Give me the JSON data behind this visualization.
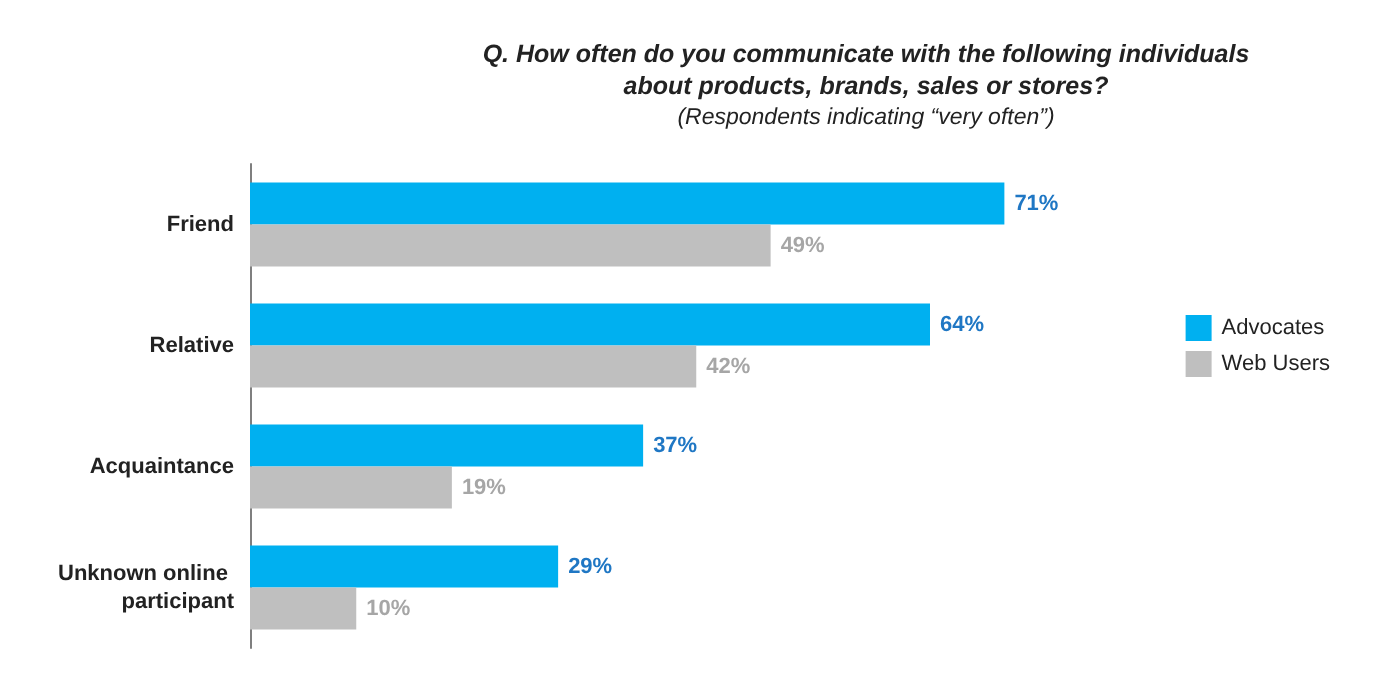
{
  "chart_data": {
    "type": "bar",
    "orientation": "horizontal",
    "title": "Q. How often do you communicate with the following individuals\nabout products, brands, sales or stores?",
    "subtitle": "(Respondents indicating “very often”)",
    "categories": [
      "Friend",
      "Relative",
      "Acquaintance",
      "Unknown online participant"
    ],
    "series": [
      {
        "name": "Advocates",
        "color": "#00b0f0",
        "values": [
          71,
          64,
          37,
          29
        ],
        "value_labels": [
          "71%",
          "64%",
          "37%",
          "29%"
        ]
      },
      {
        "name": "Web Users",
        "color": "#bfbfbf",
        "values": [
          49,
          42,
          19,
          10
        ],
        "value_labels": [
          "49%",
          "42%",
          "19%",
          "10%"
        ]
      }
    ],
    "legend": "right",
    "tick_labels": "y",
    "grid": false
  }
}
